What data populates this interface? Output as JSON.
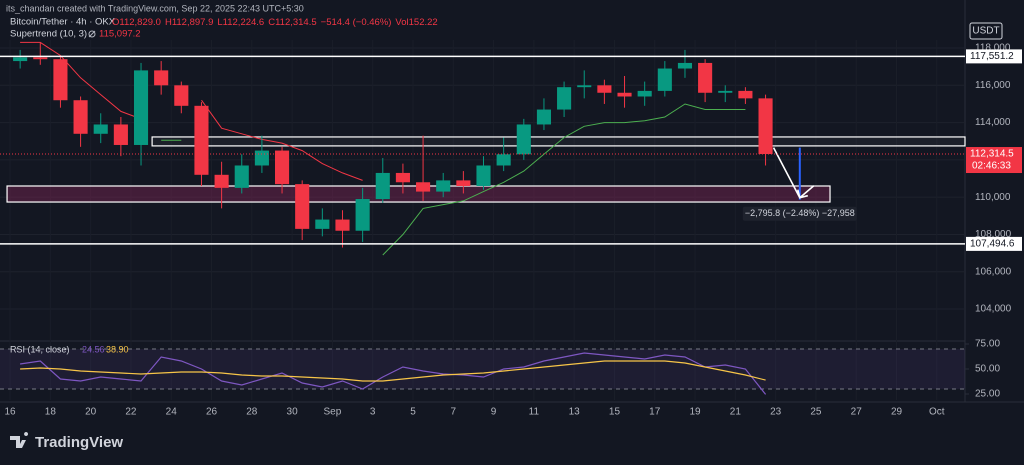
{
  "header": {
    "credit": "its_chandan created with TradingView.com, Sep 22, 2025 22:43 UTC+5:30",
    "symbol": "Bitcoin/Tether · 4h · OKX",
    "ohlc": [
      "O112,829.0",
      "H112,897.9",
      "L112,224.6",
      "C112,314.5",
      "−514.4 (−0.46%)",
      "Vol152.22"
    ],
    "currency": "USDT",
    "logo": "TradingView"
  },
  "chart_data": [
    {
      "type": "candlestick",
      "x": [
        0.5,
        1.5,
        2.5,
        3.5,
        4.5,
        5.5,
        6.5,
        7.5,
        8.5,
        9.5,
        10.5,
        11.5,
        12.5,
        13.5,
        14.5,
        15.5,
        16.5,
        17.5,
        18.5,
        19.5,
        20.5,
        21.5,
        22.5,
        23.5,
        24.5,
        25.5,
        26.5,
        27.5,
        28.5,
        29.5,
        30.5,
        31.5,
        32.5,
        33.5,
        34.5,
        35.5,
        36.5,
        37.5
      ],
      "open": [
        117300,
        117500,
        117400,
        115200,
        113400,
        113900,
        112800,
        116800,
        116000,
        114900,
        111200,
        110500,
        111700,
        112500,
        110700,
        108300,
        108800,
        108200,
        109900,
        111300,
        110800,
        110300,
        110900,
        110600,
        111700,
        112300,
        113900,
        114700,
        115900,
        116000,
        115600,
        115400,
        115700,
        116900,
        117200,
        115600,
        115700,
        115300
      ],
      "high": [
        117900,
        118300,
        117600,
        115400,
        114500,
        114300,
        117200,
        117300,
        116200,
        115100,
        111900,
        112300,
        113300,
        112700,
        110900,
        109400,
        109300,
        110500,
        112100,
        111800,
        113300,
        111300,
        111400,
        112200,
        113200,
        114200,
        115300,
        116200,
        116800,
        116300,
        116500,
        116200,
        117300,
        117900,
        117400,
        116000,
        115900,
        115500
      ],
      "low": [
        116900,
        117100,
        114800,
        112700,
        112900,
        112200,
        111700,
        115500,
        114500,
        110600,
        109400,
        110200,
        111300,
        110200,
        107700,
        107900,
        107300,
        107600,
        109700,
        110200,
        109800,
        110000,
        110200,
        110400,
        111400,
        112000,
        113600,
        114300,
        115300,
        115000,
        114800,
        114900,
        115400,
        116400,
        115100,
        115100,
        115000,
        111700
      ],
      "close": [
        117500,
        117400,
        115200,
        113400,
        113900,
        112800,
        116800,
        116000,
        114900,
        111200,
        110500,
        111700,
        112500,
        110700,
        108300,
        108800,
        108200,
        109900,
        111300,
        110800,
        110300,
        110900,
        110600,
        111700,
        112300,
        113900,
        114700,
        115900,
        116000,
        115600,
        115400,
        115700,
        116900,
        117200,
        115600,
        115700,
        115300,
        112314.5
      ],
      "colors": {
        "up": "#089981",
        "down": "#f23645"
      },
      "supertrend": {
        "label": "Supertrend (10, 3)",
        "value_label": "115,097.2",
        "up_color": "#4caf50",
        "down_color": "#f23645",
        "down": [
          118300,
          118300,
          117600,
          116400,
          115500,
          114600,
          114200,
          null,
          null,
          115200,
          113700,
          113400,
          113100,
          112900,
          112500,
          111800,
          111300,
          110900,
          null,
          null,
          null,
          null,
          null,
          null,
          null,
          null,
          null,
          null,
          null,
          null,
          null,
          null,
          null,
          null,
          null,
          null,
          null,
          115097.2
        ],
        "up": [
          null,
          null,
          null,
          null,
          null,
          null,
          null,
          113050,
          113050,
          null,
          null,
          null,
          null,
          null,
          null,
          null,
          null,
          null,
          106900,
          108000,
          109400,
          109600,
          109800,
          110300,
          110800,
          111400,
          112300,
          113200,
          113800,
          114000,
          114000,
          114100,
          114300,
          115000,
          114700,
          114700,
          114700,
          null
        ]
      },
      "xlim": [
        -0.5,
        47.4
      ],
      "xticks": [
        {
          "value": 0,
          "label": "16"
        },
        {
          "value": 2,
          "label": "18"
        },
        {
          "value": 4,
          "label": "20"
        },
        {
          "value": 6,
          "label": "22"
        },
        {
          "value": 8,
          "label": "24"
        },
        {
          "value": 10,
          "label": "26"
        },
        {
          "value": 12,
          "label": "28"
        },
        {
          "value": 14,
          "label": "30"
        },
        {
          "value": 16,
          "label": "Sep"
        },
        {
          "value": 18,
          "label": "3"
        },
        {
          "value": 20,
          "label": "5"
        },
        {
          "value": 22,
          "label": "7"
        },
        {
          "value": 24,
          "label": "9"
        },
        {
          "value": 26,
          "label": "11"
        },
        {
          "value": 28,
          "label": "13"
        },
        {
          "value": 30,
          "label": "15"
        },
        {
          "value": 32,
          "label": "17"
        },
        {
          "value": 34,
          "label": "19"
        },
        {
          "value": 36,
          "label": "21"
        },
        {
          "value": 38,
          "label": "23"
        },
        {
          "value": 40,
          "label": "25"
        },
        {
          "value": 42,
          "label": "27"
        },
        {
          "value": 44,
          "label": "29"
        },
        {
          "value": 46,
          "label": "Oct"
        }
      ],
      "ylim": [
        102340,
        118430
      ],
      "yticks": [
        {
          "value": 104000,
          "label": "104,000"
        },
        {
          "value": 106000,
          "label": "106,000"
        },
        {
          "value": 108000,
          "label": "108,000"
        },
        {
          "value": 110000,
          "label": "110,000"
        },
        {
          "value": 112000,
          "label": "112,000"
        },
        {
          "value": 114000,
          "label": "114,000"
        },
        {
          "value": 116000,
          "label": "116,000"
        },
        {
          "value": 118000,
          "label": "118,000"
        }
      ],
      "levels": [
        {
          "value": 117551.2,
          "label": "117,551.2"
        },
        {
          "value": 107494.6,
          "label": "107,494.6"
        }
      ],
      "zones": [
        {
          "top": 113230,
          "bottom": 112750,
          "x_start": 7.05,
          "x_end": 47.4,
          "fill": "rgba(255,255,255,0.04)"
        },
        {
          "top": 110600,
          "bottom": 109740,
          "x_start": -0.15,
          "x_end": 40.7,
          "fill": "rgba(156,39,96,0.35)"
        }
      ],
      "measure": {
        "x": 39.2,
        "from": 112660,
        "to": 109864.2,
        "label": "−2,795.8 (−2.48%) −27,958",
        "color": "#2962ff"
      },
      "last_price": {
        "value": 112314.5,
        "label": "112,314.5",
        "countdown": "02:46:33"
      }
    },
    {
      "type": "line",
      "title": "RSI (14, close)",
      "x": [
        0.5,
        1.5,
        2.5,
        3.5,
        4.5,
        5.5,
        6.5,
        7.5,
        8.5,
        9.5,
        10.5,
        11.5,
        12.5,
        13.5,
        14.5,
        15.5,
        16.5,
        17.5,
        18.5,
        19.5,
        20.5,
        21.5,
        22.5,
        23.5,
        24.5,
        25.5,
        26.5,
        27.5,
        28.5,
        29.5,
        30.5,
        31.5,
        32.5,
        33.5,
        34.5,
        35.5,
        36.5,
        37.5
      ],
      "series": [
        {
          "color": "#7e57c2",
          "value_label": "24.56",
          "values": [
            55,
            58,
            40,
            38,
            42,
            40,
            38,
            62,
            58,
            50,
            38,
            34,
            40,
            46,
            36,
            32,
            38,
            30,
            42,
            52,
            48,
            45,
            44,
            42,
            50,
            52,
            58,
            62,
            66,
            64,
            62,
            60,
            64,
            62,
            52,
            54,
            50,
            24.56
          ]
        },
        {
          "color": "#f7c548",
          "value_label": "38.90",
          "values": [
            50,
            51,
            50,
            48,
            47,
            46,
            45,
            46,
            47,
            47,
            46,
            44,
            43,
            43,
            42,
            41,
            40,
            38,
            38,
            40,
            42,
            44,
            45,
            46,
            48,
            50,
            52,
            54,
            56,
            58,
            58,
            58,
            58,
            56,
            52,
            48,
            44,
            38.9
          ]
        }
      ],
      "bands": [
        30,
        70
      ],
      "xlim": [
        -0.5,
        47.4
      ],
      "ylim": [
        19,
        77
      ],
      "yticks": [
        {
          "value": 25,
          "label": "25.00"
        },
        {
          "value": 50,
          "label": "50.00"
        },
        {
          "value": 75,
          "label": "75.00"
        }
      ]
    }
  ]
}
